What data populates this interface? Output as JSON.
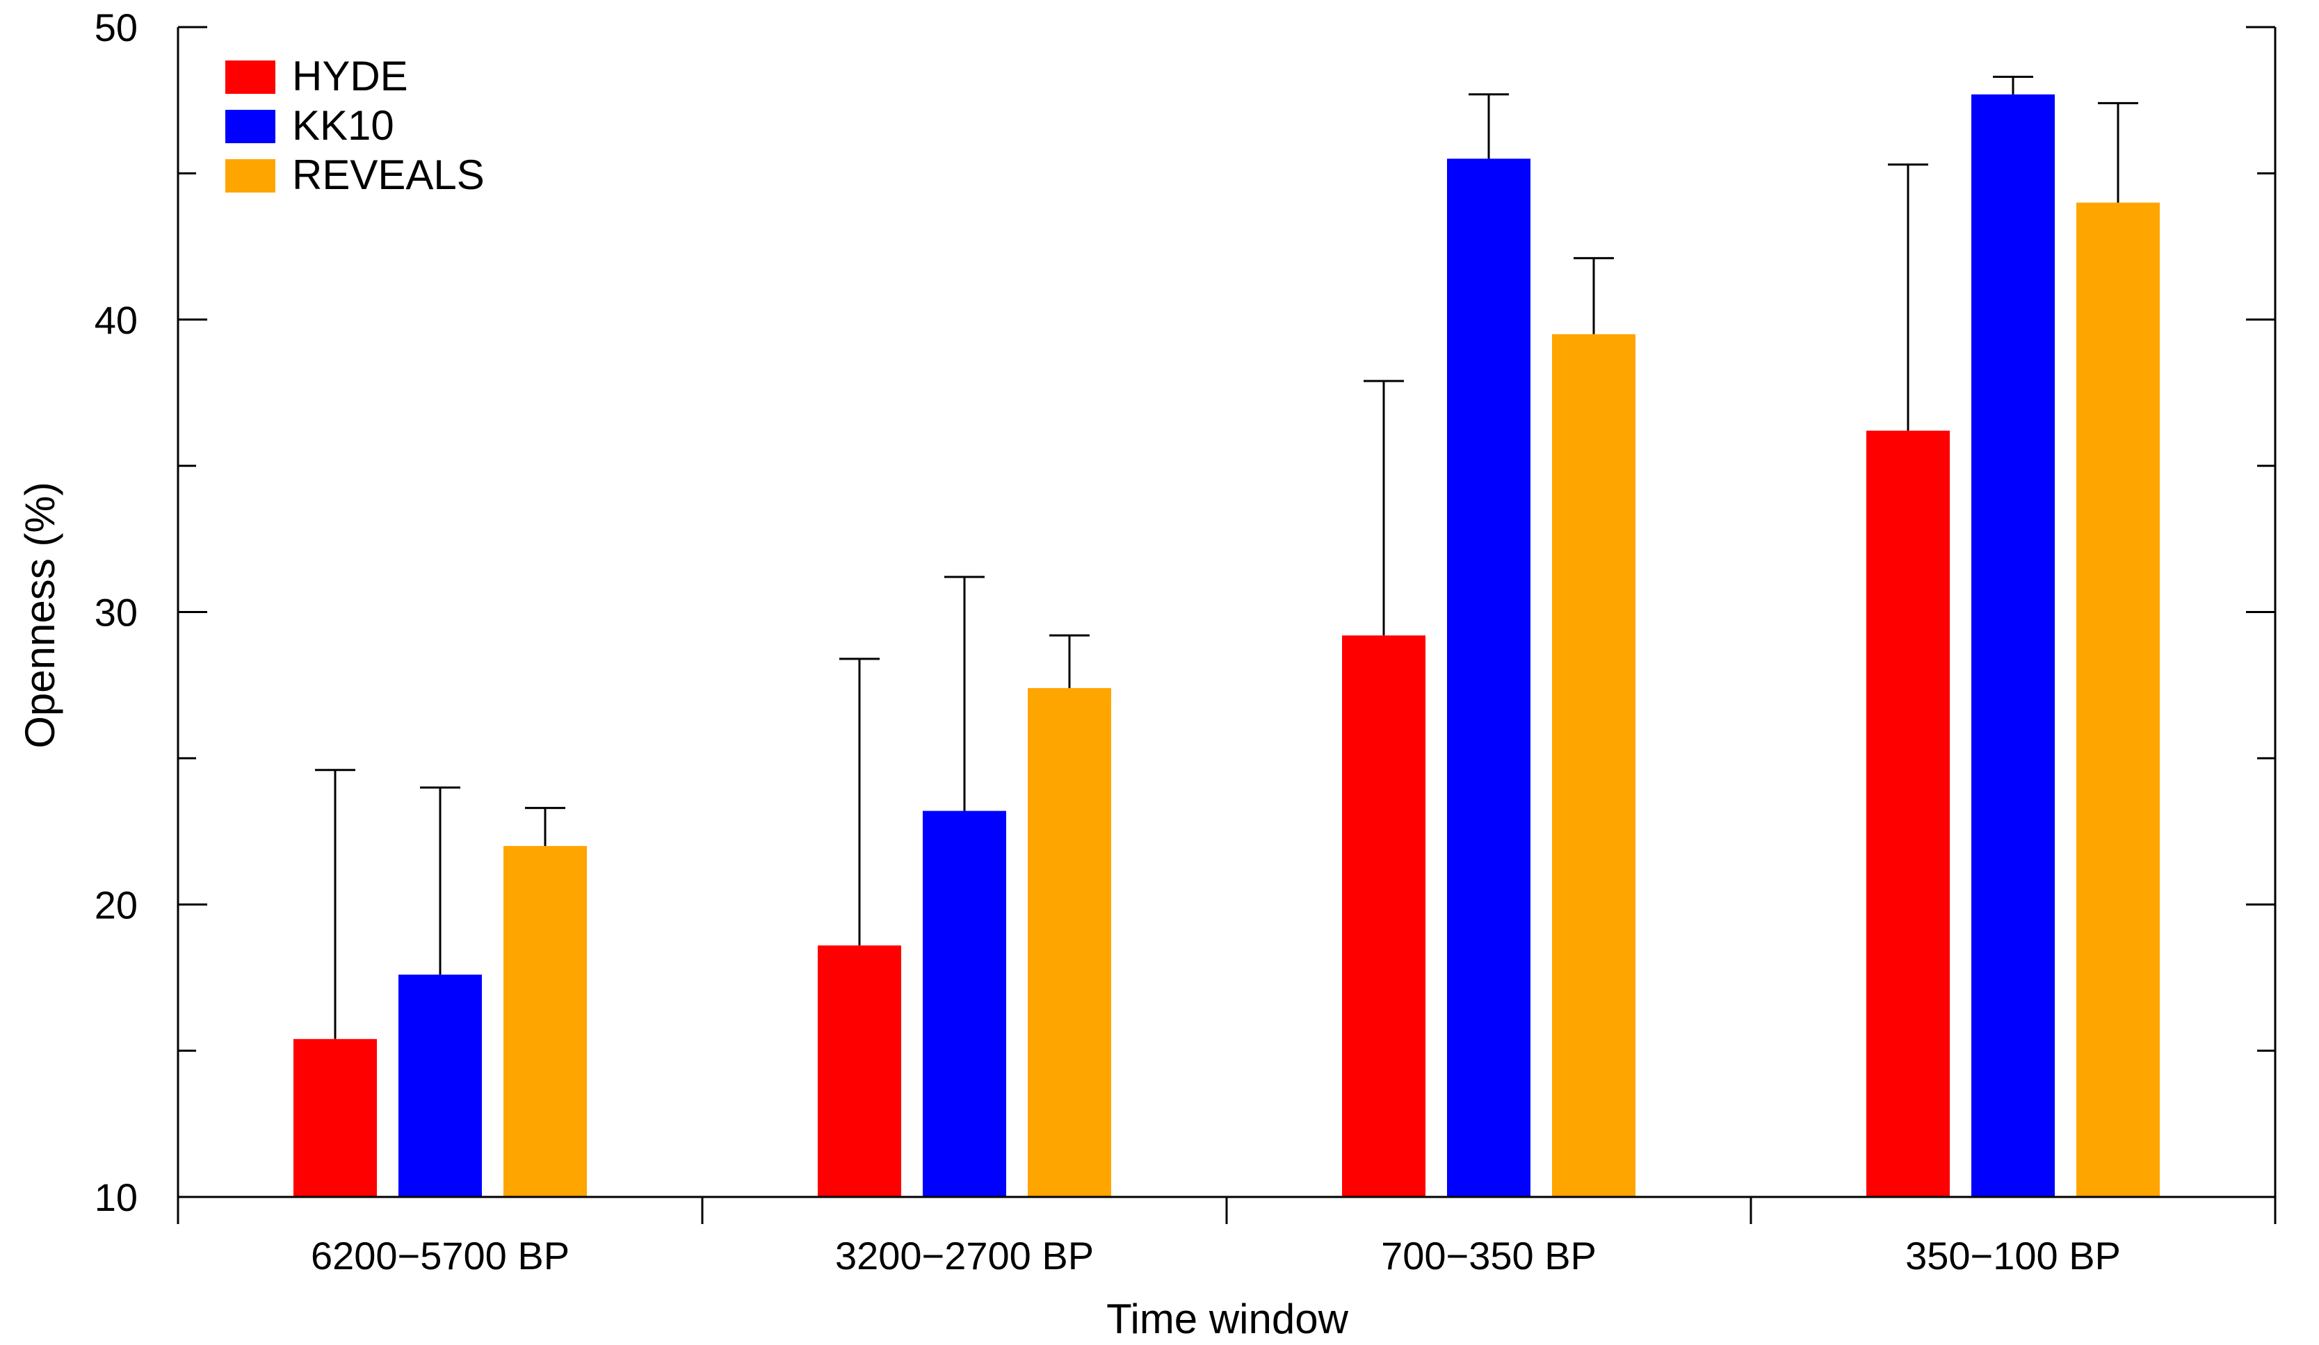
{
  "chart_data": {
    "type": "bar",
    "title": "",
    "xlabel": "Time window",
    "ylabel": "Openness (%)",
    "ylim": [
      10,
      50
    ],
    "yticks": [
      10,
      20,
      30,
      40,
      50
    ],
    "yminor_ticks": [
      15,
      25,
      35,
      45
    ],
    "legend_position": "top-left",
    "categories": [
      "6200−5700 BP",
      "3200−2700 BP",
      "700−350 BP",
      "350−100 BP"
    ],
    "series": [
      {
        "name": "HYDE",
        "color": "#ff0000",
        "values": [
          15.4,
          18.6,
          29.2,
          36.2
        ],
        "error_upper": [
          24.6,
          28.4,
          37.9,
          45.3
        ]
      },
      {
        "name": "KK10",
        "color": "#0000ff",
        "values": [
          17.6,
          23.2,
          45.5,
          47.7
        ],
        "error_upper": [
          24.0,
          31.2,
          47.7,
          48.3
        ]
      },
      {
        "name": "REVEALS",
        "color": "#ffa500",
        "values": [
          22.0,
          27.4,
          39.5,
          44.0
        ],
        "error_upper": [
          23.3,
          29.2,
          42.1,
          47.4
        ]
      }
    ]
  }
}
